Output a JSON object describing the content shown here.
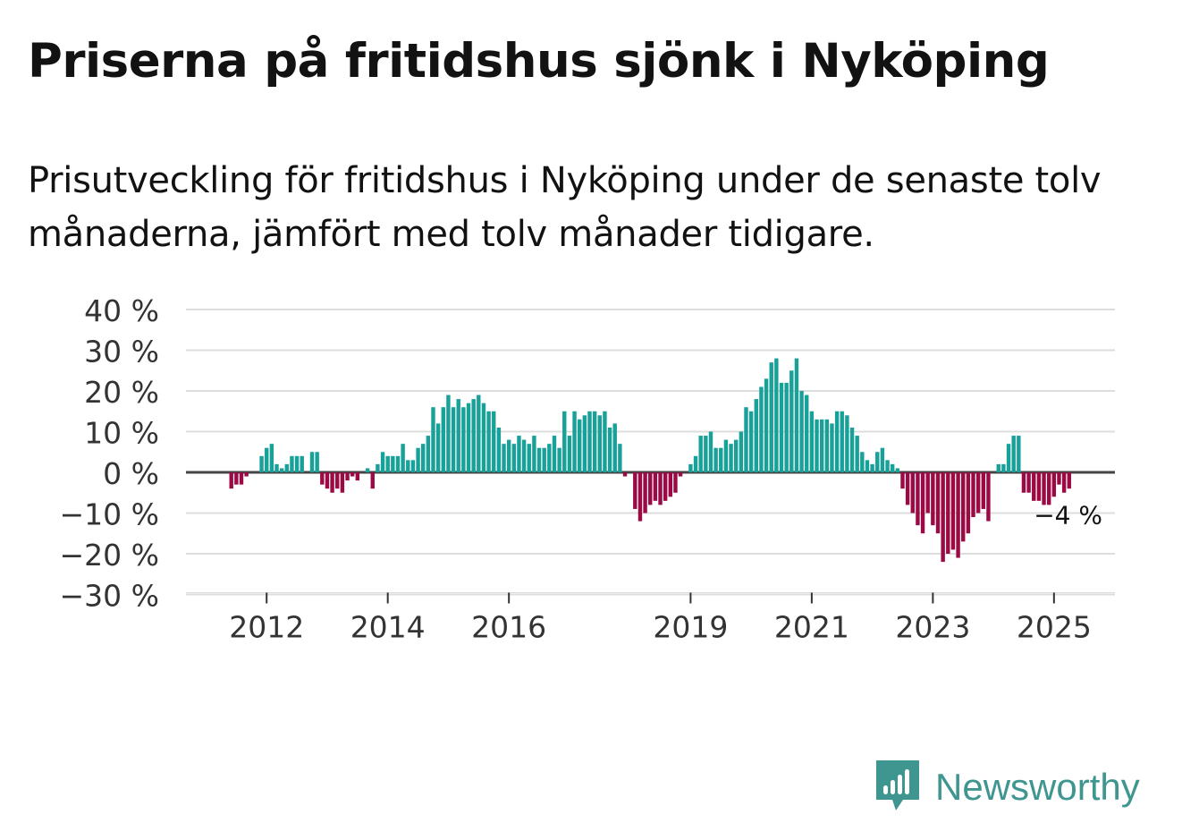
{
  "title": "Priserna på fritidshus sjönk i Nyköping",
  "subtitle": "Prisutveckling för fritidshus i Nyköping under de senaste tolv månaderna, jämfört med tolv månader tidigare.",
  "brand": {
    "name": "Newsworthy",
    "icon": "newsworthy-logo-icon",
    "color": "#3f9690"
  },
  "colors": {
    "positive": "#17a198",
    "negative": "#9b0a45",
    "zero_line": "#444444",
    "grid": "#dddddd"
  },
  "chart_data": {
    "type": "bar",
    "title": "Prisutveckling för fritidshus i Nyköping",
    "xlabel": "",
    "ylabel": "",
    "ylim": [
      -30,
      40
    ],
    "yticks": [
      40,
      30,
      20,
      10,
      0,
      -10,
      -20,
      -30
    ],
    "ytick_labels": [
      "40 %",
      "30 %",
      "20 %",
      "10 %",
      "0 %",
      "−10 %",
      "−20 %",
      "−30 %"
    ],
    "xticks": [
      2012,
      2014,
      2016,
      2019,
      2021,
      2023,
      2025
    ],
    "xtick_labels": [
      "2012",
      "2014",
      "2016",
      "2019",
      "2021",
      "2023",
      "2025"
    ],
    "start": "2011-06",
    "frequency": "monthly",
    "grid": true,
    "end_label": "−4 %",
    "values": [
      -4,
      -3,
      -3,
      -1,
      0,
      0,
      4,
      6,
      7,
      2,
      1,
      2,
      4,
      4,
      4,
      0,
      5,
      5,
      -3,
      -4,
      -5,
      -4,
      -5,
      -2,
      -1,
      -2,
      0,
      1,
      -4,
      2,
      5,
      4,
      4,
      4,
      7,
      3,
      3,
      6,
      7,
      9,
      16,
      12,
      16,
      19,
      16,
      18,
      16,
      17,
      18,
      19,
      17,
      15,
      15,
      11,
      7,
      8,
      7,
      9,
      8,
      7,
      9,
      6,
      6,
      7,
      9,
      6,
      15,
      9,
      15,
      13,
      14,
      15,
      15,
      14,
      15,
      11,
      12,
      7,
      -1,
      0,
      -9,
      -12,
      -10,
      -8,
      -7,
      -8,
      -7,
      -6,
      -5,
      -1,
      0,
      2,
      4,
      9,
      9,
      10,
      6,
      6,
      8,
      7,
      8,
      10,
      16,
      15,
      18,
      21,
      23,
      27,
      28,
      22,
      22,
      25,
      28,
      20,
      19,
      15,
      13,
      13,
      13,
      12,
      15,
      15,
      14,
      11,
      9,
      5,
      3,
      2,
      5,
      6,
      3,
      2,
      1,
      -4,
      -8,
      -10,
      -13,
      -15,
      -10,
      -13,
      -15,
      -22,
      -20,
      -19,
      -21,
      -17,
      -15,
      -11,
      -10,
      -9,
      -12,
      0,
      2,
      2,
      7,
      9,
      9,
      -5,
      -5,
      -7,
      -7,
      -8,
      -8,
      -6,
      -3,
      -5,
      -4
    ]
  }
}
